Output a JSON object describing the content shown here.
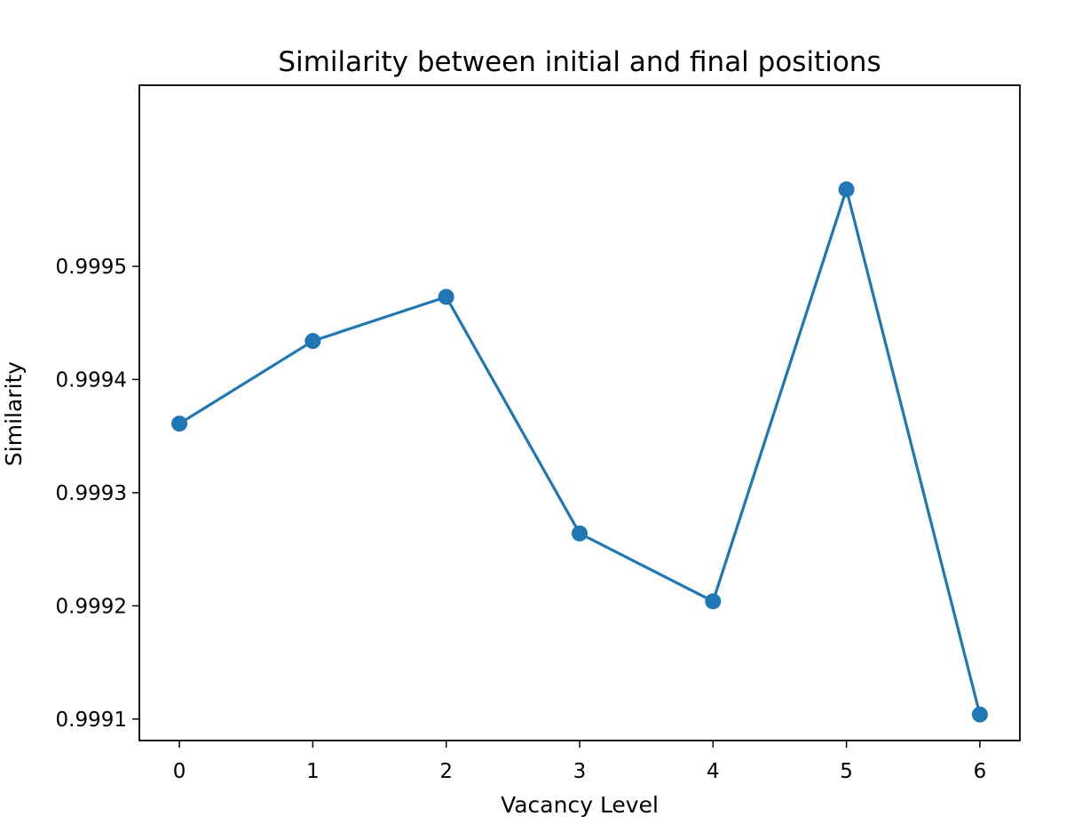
{
  "chart_data": {
    "type": "line",
    "title": "Similarity between initial and final positions",
    "xlabel": "Vacancy Level",
    "ylabel": "Similarity",
    "x": [
      0,
      1,
      2,
      3,
      4,
      5,
      6
    ],
    "series": [
      {
        "values": [
          0.999361,
          0.999434,
          0.999473,
          0.999264,
          0.999204,
          0.999568,
          0.999104
        ],
        "color": "#1f77b4",
        "marker": "circle"
      }
    ],
    "xlim": [
      -0.3,
      6.3
    ],
    "ylim": [
      0.999081,
      0.99966
    ],
    "xticks": [
      "0",
      "1",
      "2",
      "3",
      "4",
      "5",
      "6"
    ],
    "yticks": [
      {
        "value": 0.9991,
        "label": "0.9991"
      },
      {
        "value": 0.9992,
        "label": "0.9992"
      },
      {
        "value": 0.9993,
        "label": "0.9993"
      },
      {
        "value": 0.9994,
        "label": "0.9994"
      },
      {
        "value": 0.9995,
        "label": "0.9995"
      }
    ],
    "grid": false,
    "legend": "none"
  }
}
